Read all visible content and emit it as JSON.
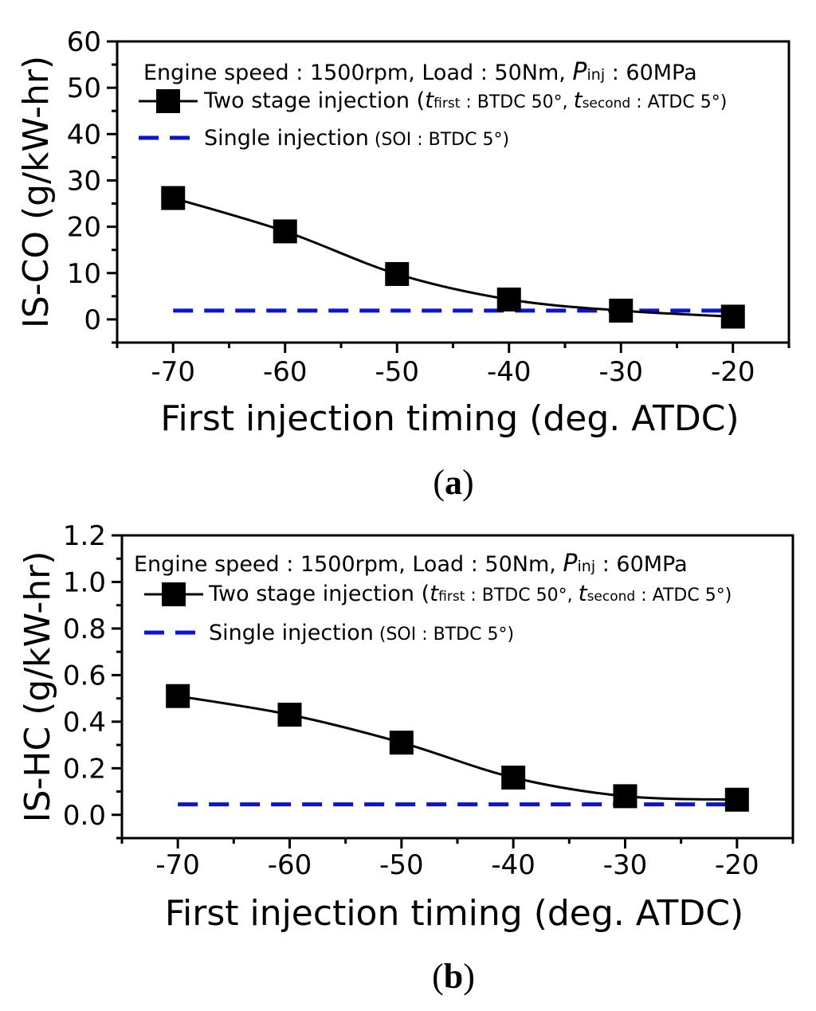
{
  "chart_data": [
    {
      "type": "line",
      "panel_label": "a",
      "xlabel": "First injection timing (deg. ATDC)",
      "ylabel": "IS-CO (g/kW-hr)",
      "xlim": [
        -75,
        -15
      ],
      "ylim": [
        -5,
        60
      ],
      "xticks": [
        -70,
        -60,
        -50,
        -40,
        -30,
        -20
      ],
      "yticks": [
        0,
        10,
        20,
        30,
        40,
        50,
        60
      ],
      "ytick_labels": [
        "0",
        "10",
        "20",
        "30",
        "40",
        "50",
        "60"
      ],
      "annotation": {
        "main": "Engine speed : 1500rpm, Load : 50Nm, ",
        "sym": "P",
        "sub": "inj",
        "tail": " : 60MPa"
      },
      "legend": {
        "two_stage": {
          "label": "Two stage injection",
          "paren_open": " (",
          "t1": "t",
          "t1_sub": "first",
          "t1_val": " : BTDC 50°, ",
          "t2": "t",
          "t2_sub": "second",
          "t2_val": " : ATDC 5°)"
        },
        "single": {
          "label": "Single injection",
          "note": " (SOI : BTDC 5°)"
        }
      },
      "series": [
        {
          "name": "Two stage injection",
          "color": "#000000",
          "x": [
            -70,
            -60,
            -50,
            -40,
            -30,
            -20
          ],
          "values": [
            26.2,
            19.0,
            9.8,
            4.3,
            1.9,
            0.6
          ]
        },
        {
          "name": "Single injection",
          "color": "#0a14d2",
          "x": [
            -70,
            -20
          ],
          "values": [
            1.9,
            1.9
          ]
        }
      ]
    },
    {
      "type": "line",
      "panel_label": "b",
      "xlabel": "First injection timing (deg. ATDC)",
      "ylabel": "IS-HC (g/kW-hr)",
      "xlim": [
        -75,
        -15
      ],
      "ylim": [
        -0.1,
        1.2
      ],
      "xticks": [
        -70,
        -60,
        -50,
        -40,
        -30,
        -20
      ],
      "yticks": [
        0.0,
        0.2,
        0.4,
        0.6,
        0.8,
        1.0,
        1.2
      ],
      "ytick_labels": [
        "0.0",
        "0.2",
        "0.4",
        "0.6",
        "0.8",
        "1.0",
        "1.2"
      ],
      "annotation": {
        "main": "Engine speed : 1500rpm, Load : 50Nm, ",
        "sym": "P",
        "sub": "inj",
        "tail": " : 60MPa"
      },
      "legend": {
        "two_stage": {
          "label": "Two stage injection",
          "paren_open": " (",
          "t1": "t",
          "t1_sub": "first",
          "t1_val": " : BTDC 50°, ",
          "t2": "t",
          "t2_sub": "second",
          "t2_val": " : ATDC 5°)"
        },
        "single": {
          "label": "Single injection",
          "note": " (SOI : BTDC 5°)"
        }
      },
      "series": [
        {
          "name": "Two stage injection",
          "color": "#000000",
          "x": [
            -70,
            -60,
            -50,
            -40,
            -30,
            -20
          ],
          "values": [
            0.51,
            0.43,
            0.31,
            0.16,
            0.08,
            0.065
          ]
        },
        {
          "name": "Single injection",
          "color": "#0a14d2",
          "x": [
            -70,
            -20
          ],
          "values": [
            0.045,
            0.045
          ]
        }
      ]
    }
  ]
}
